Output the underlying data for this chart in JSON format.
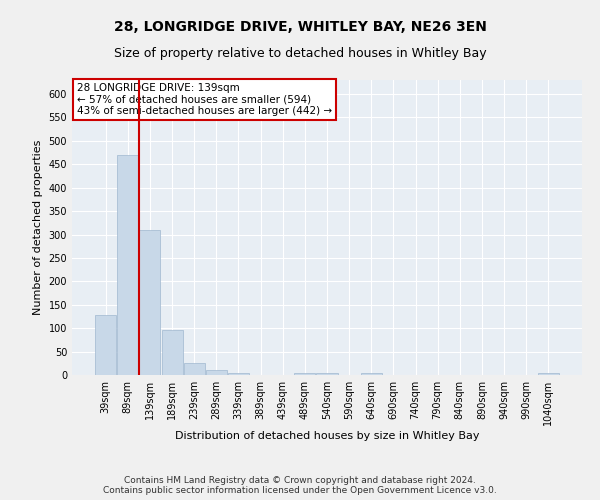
{
  "title_line1": "28, LONGRIDGE DRIVE, WHITLEY BAY, NE26 3EN",
  "title_line2": "Size of property relative to detached houses in Whitley Bay",
  "xlabel": "Distribution of detached houses by size in Whitley Bay",
  "ylabel": "Number of detached properties",
  "bar_color": "#c8d8e8",
  "bar_edge_color": "#a0b8d0",
  "highlight_line_color": "#cc0000",
  "annotation_text": "28 LONGRIDGE DRIVE: 139sqm\n← 57% of detached houses are smaller (594)\n43% of semi-detached houses are larger (442) →",
  "annotation_box_color": "#cc0000",
  "footer_line1": "Contains HM Land Registry data © Crown copyright and database right 2024.",
  "footer_line2": "Contains public sector information licensed under the Open Government Licence v3.0.",
  "categories": [
    "39sqm",
    "89sqm",
    "139sqm",
    "189sqm",
    "239sqm",
    "289sqm",
    "339sqm",
    "389sqm",
    "439sqm",
    "489sqm",
    "540sqm",
    "590sqm",
    "640sqm",
    "690sqm",
    "740sqm",
    "790sqm",
    "840sqm",
    "890sqm",
    "940sqm",
    "990sqm",
    "1040sqm"
  ],
  "values": [
    128,
    470,
    310,
    96,
    25,
    10,
    4,
    1,
    0,
    5,
    5,
    0,
    4,
    0,
    0,
    0,
    0,
    0,
    0,
    0,
    4
  ],
  "ylim": [
    0,
    630
  ],
  "yticks": [
    0,
    50,
    100,
    150,
    200,
    250,
    300,
    350,
    400,
    450,
    500,
    550,
    600
  ],
  "background_color": "#e8eef4",
  "grid_color": "#ffffff",
  "title_fontsize": 10,
  "subtitle_fontsize": 9,
  "axis_label_fontsize": 8,
  "tick_fontsize": 7,
  "annotation_fontsize": 7.5,
  "footer_fontsize": 6.5
}
